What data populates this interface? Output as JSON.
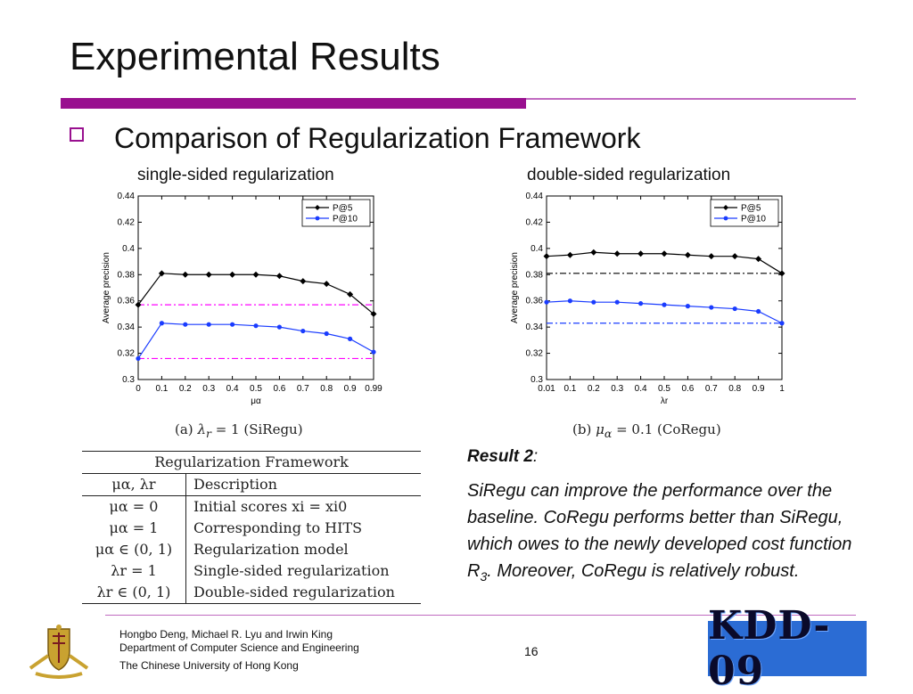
{
  "slide": {
    "title": "Experimental Results",
    "bullet": "Comparison of Regularization Framework",
    "left_label": "single-sided regularization",
    "right_label": "double-sided regularization",
    "caption_a": "(a)",
    "caption_a_math_lhs": "λ",
    "caption_a_math_sub": "r",
    "caption_a_rest": " = 1 (SiRegu)",
    "caption_b": "(b)",
    "caption_b_math_lhs": "μ",
    "caption_b_math_sub": "α",
    "caption_b_rest": " = 0.1 (CoRegu)",
    "result_title": "Result 2",
    "result_colon": ":",
    "result_body_1": "SiRegu can improve the performance over the baseline. CoRegu performs better than SiRegu, which owes to the newly developed cost function R",
    "result_body_sub": "3",
    "result_body_2": ". Moreover, CoRegu is relatively robust.",
    "page_number": "16",
    "footer_line1": "Hongbo Deng, Michael R. Lyu and Irwin King",
    "footer_line2": "Department of Computer Science and Engineering",
    "footer_line3": "The Chinese University of Hong Kong",
    "kdd_logo": "KDD-09"
  },
  "table": {
    "caption": "Regularization Framework",
    "header": [
      "μα, λr",
      "Description"
    ],
    "rows": [
      [
        "μα = 0",
        "Initial scores xi = xi0"
      ],
      [
        "μα = 1",
        "Corresponding to HITS"
      ],
      [
        "μα ∈ (0, 1)",
        "Regularization model"
      ],
      [
        "λr = 1",
        "Single-sided regularization"
      ],
      [
        "λr ∈ (0, 1)",
        "Double-sided regularization"
      ]
    ]
  },
  "colors": {
    "accent": "#99108f",
    "series_p5": "#000000",
    "series_p10": "#1a3cff",
    "baseline_left": "#ff00ff",
    "baseline_right_p5": "#000000",
    "baseline_right_p10": "#1a3cff"
  },
  "chart_data": [
    {
      "type": "line",
      "xlabel": "μα",
      "ylabel": "Average precision",
      "categories": [
        "0",
        "0.1",
        "0.2",
        "0.3",
        "0.4",
        "0.5",
        "0.6",
        "0.7",
        "0.8",
        "0.9",
        "0.99"
      ],
      "ylim": [
        0.3,
        0.44
      ],
      "yticks": [
        "0.3",
        "0.32",
        "0.34",
        "0.36",
        "0.38",
        "0.4",
        "0.42",
        "0.44"
      ],
      "legend_position": "top-right",
      "series": [
        {
          "name": "P@5",
          "values": [
            0.357,
            0.381,
            0.38,
            0.38,
            0.38,
            0.38,
            0.379,
            0.375,
            0.373,
            0.365,
            0.35
          ]
        },
        {
          "name": "P@10",
          "values": [
            0.316,
            0.343,
            0.342,
            0.342,
            0.342,
            0.341,
            0.34,
            0.337,
            0.335,
            0.331,
            0.321
          ]
        }
      ],
      "baselines": [
        0.357,
        0.316
      ]
    },
    {
      "type": "line",
      "xlabel": "λr",
      "ylabel": "Average precision",
      "categories": [
        "0.01",
        "0.1",
        "0.2",
        "0.3",
        "0.4",
        "0.5",
        "0.6",
        "0.7",
        "0.8",
        "0.9",
        "1"
      ],
      "ylim": [
        0.3,
        0.44
      ],
      "yticks": [
        "0.3",
        "0.32",
        "0.34",
        "0.36",
        "0.38",
        "0.4",
        "0.42",
        "0.44"
      ],
      "legend_position": "top-right",
      "series": [
        {
          "name": "P@5",
          "values": [
            0.394,
            0.395,
            0.397,
            0.396,
            0.396,
            0.396,
            0.395,
            0.394,
            0.394,
            0.392,
            0.381
          ]
        },
        {
          "name": "P@10",
          "values": [
            0.359,
            0.36,
            0.359,
            0.359,
            0.358,
            0.357,
            0.356,
            0.355,
            0.354,
            0.352,
            0.343
          ]
        }
      ],
      "baselines": [
        0.381,
        0.343
      ]
    }
  ]
}
